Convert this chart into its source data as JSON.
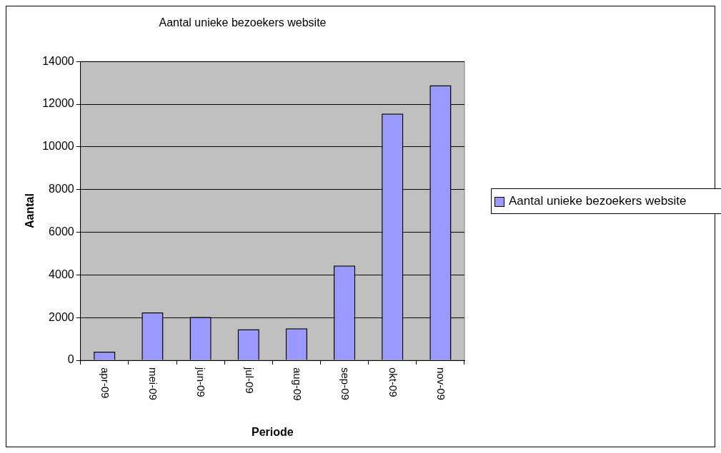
{
  "chart_data": {
    "type": "bar",
    "title": "Aantal unieke bezoekers website",
    "xlabel": "Periode",
    "ylabel": "Aantal",
    "categories": [
      "apr-09",
      "mei-09",
      "jun-09",
      "jul-09",
      "aug-09",
      "sep-09",
      "okt-09",
      "nov-09"
    ],
    "series": [
      {
        "name": "Aantal unieke bezoekers website",
        "color": "#9999ff",
        "values": [
          400,
          2240,
          2030,
          1450,
          1500,
          4440,
          11560,
          12890
        ]
      }
    ],
    "ylim": [
      0,
      14000
    ],
    "yticks": [
      0,
      2000,
      4000,
      6000,
      8000,
      10000,
      12000,
      14000
    ],
    "grid": "y",
    "legend": "right"
  }
}
